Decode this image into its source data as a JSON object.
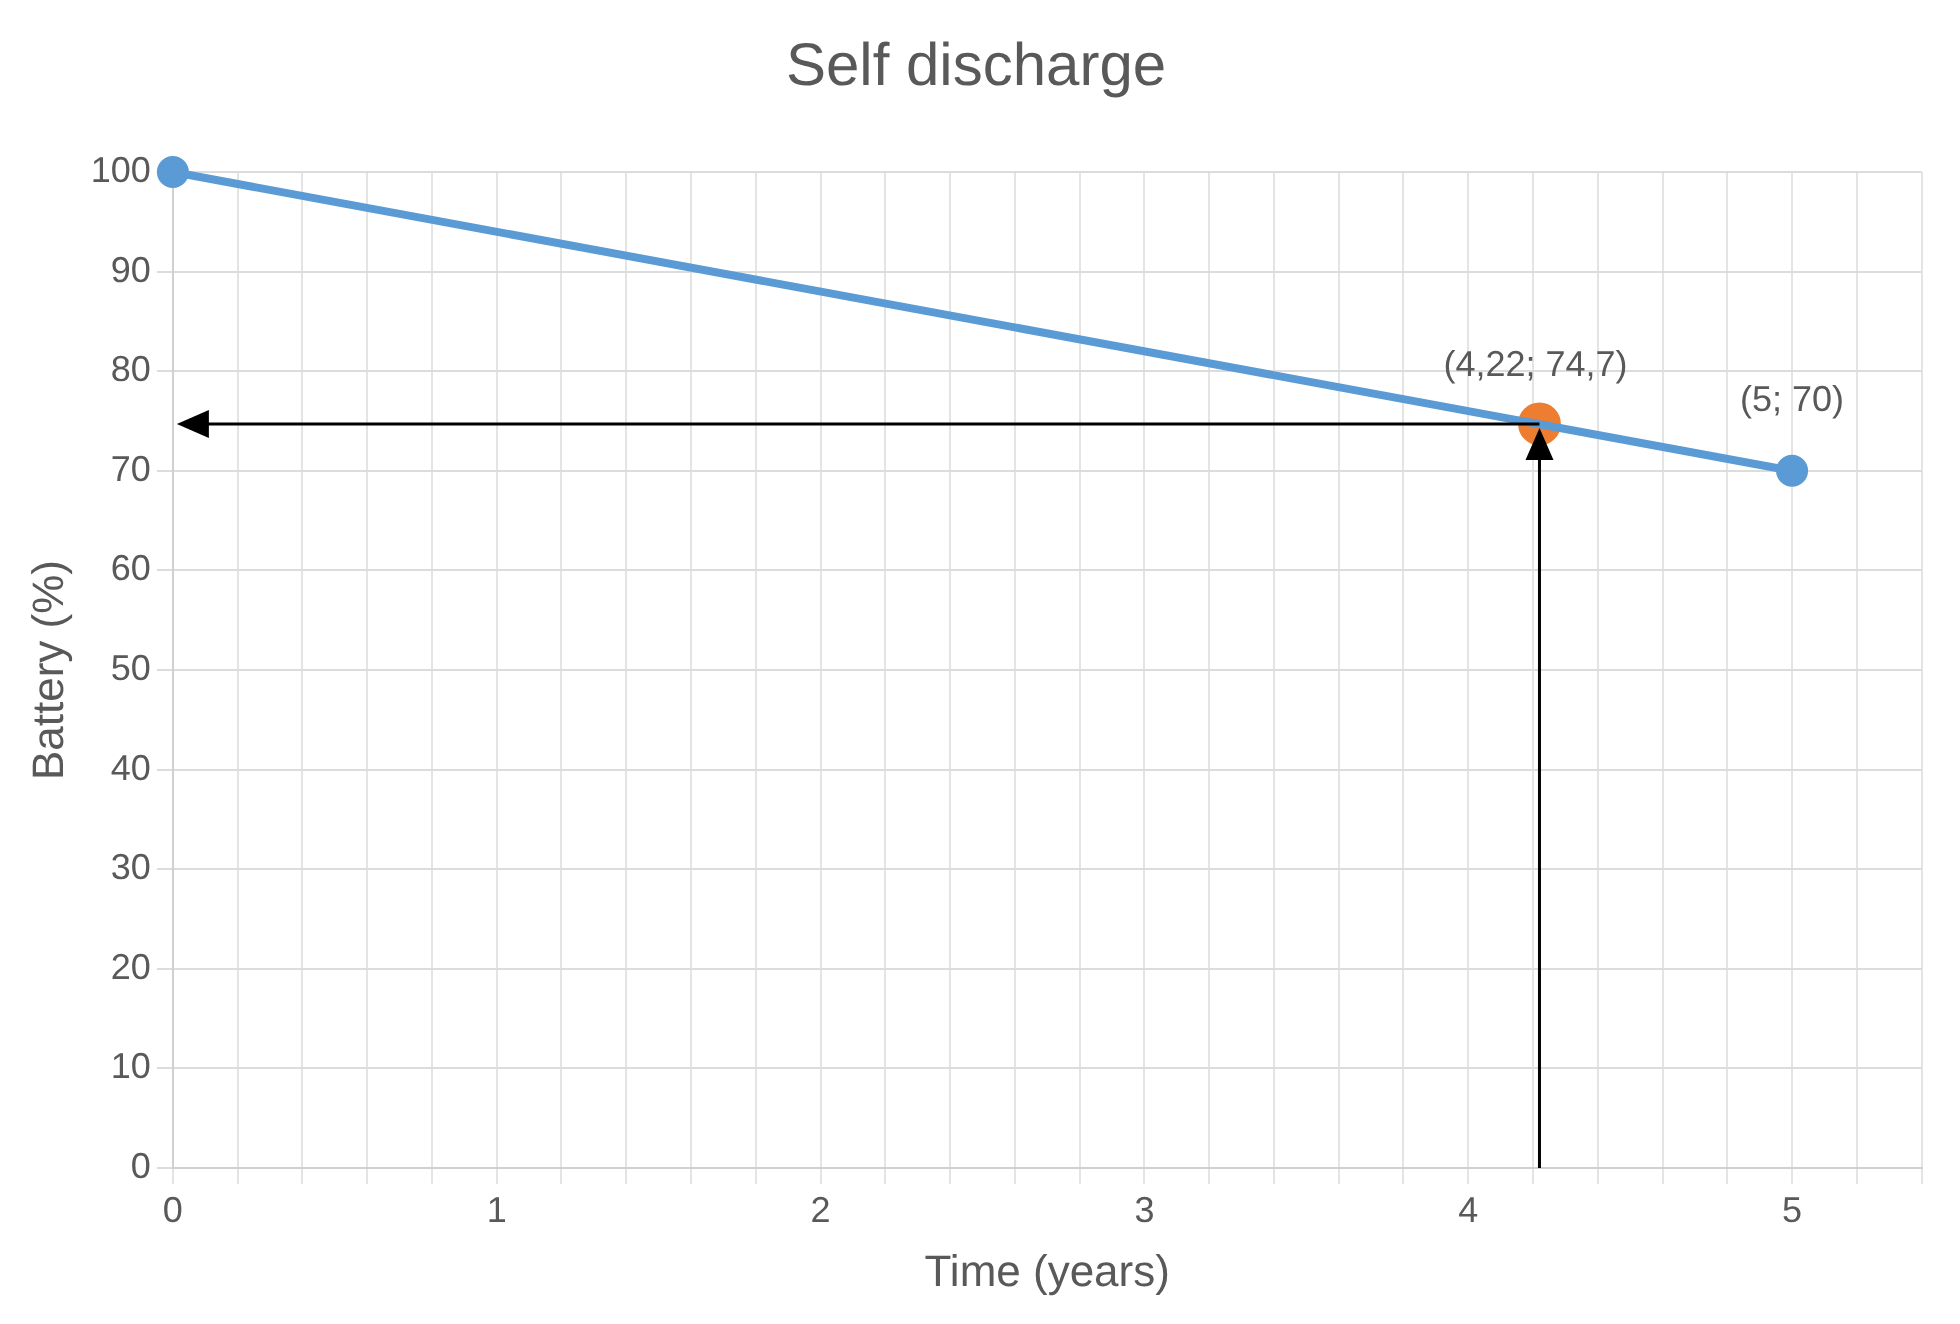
{
  "chart_data": {
    "type": "line",
    "title": "Self discharge",
    "xlabel": "Time (years)",
    "ylabel": "Battery (%)",
    "xlim": [
      0,
      5.4
    ],
    "ylim": [
      0,
      100
    ],
    "xticks": [
      0,
      {
        "value": 0.2,
        "label": null
      },
      {
        "value": 0.4,
        "label": null
      },
      {
        "value": 0.6,
        "label": null
      },
      {
        "value": 0.8,
        "label": null
      },
      1,
      {
        "value": 1.2,
        "label": null
      },
      {
        "value": 1.4,
        "label": null
      },
      {
        "value": 1.6,
        "label": null
      },
      {
        "value": 1.8,
        "label": null
      },
      2,
      {
        "value": 2.2,
        "label": null
      },
      {
        "value": 2.4,
        "label": null
      },
      {
        "value": 2.6,
        "label": null
      },
      {
        "value": 2.8,
        "label": null
      },
      3,
      {
        "value": 3.2,
        "label": null
      },
      {
        "value": 3.4,
        "label": null
      },
      {
        "value": 3.6,
        "label": null
      },
      {
        "value": 3.8,
        "label": null
      },
      4,
      {
        "value": 4.2,
        "label": null
      },
      {
        "value": 4.4,
        "label": null
      },
      {
        "value": 4.6,
        "label": null
      },
      {
        "value": 4.8,
        "label": null
      },
      5,
      {
        "value": 5.2,
        "label": null
      },
      {
        "value": 5.4,
        "label": null
      }
    ],
    "yticks": [
      0,
      10,
      20,
      30,
      40,
      50,
      60,
      70,
      80,
      90,
      100
    ],
    "grid": true,
    "legend": false,
    "marker": "circle",
    "line_style": "solid",
    "series": [
      {
        "color": "#5b9bd5",
        "x": [
          0,
          5
        ],
        "values": [
          100,
          70
        ],
        "value_labels": [
          null,
          "(5; 70)"
        ]
      },
      {
        "type": "scatter",
        "color": "#ed7d31",
        "x": [
          4.22
        ],
        "values": [
          74.7
        ],
        "value_labels": [
          "(4,22; 74,7)"
        ]
      }
    ]
  }
}
